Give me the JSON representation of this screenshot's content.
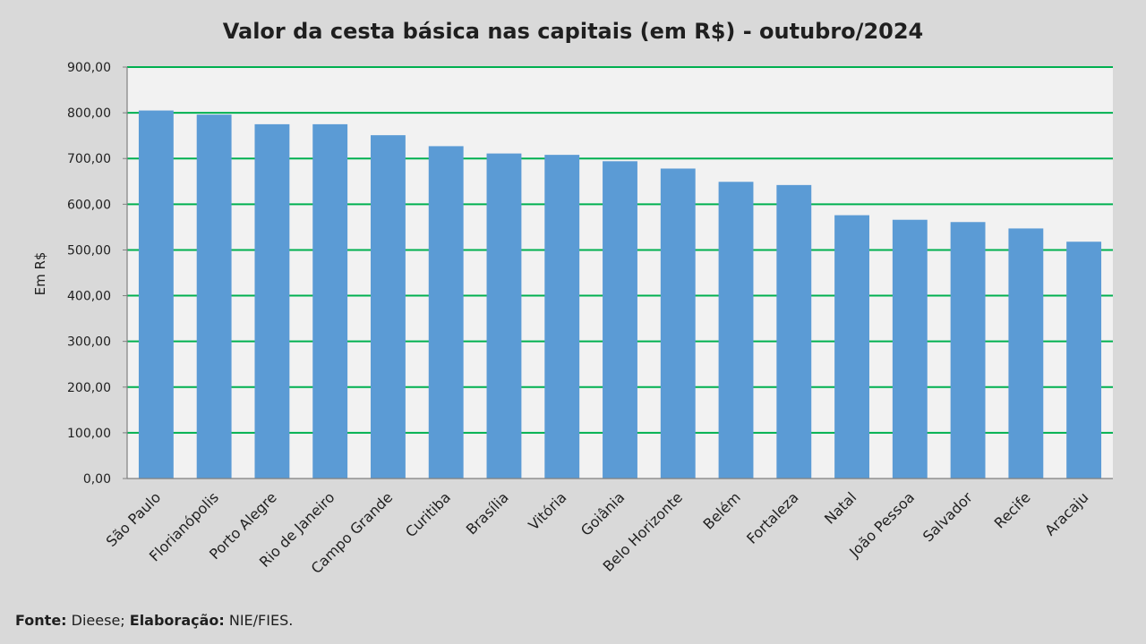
{
  "chart_data": {
    "type": "bar",
    "title": "Valor da cesta básica nas capitais (em R$) - outubro/2024",
    "ylabel": "Em R$",
    "xlabel": "",
    "ylim": [
      0,
      900
    ],
    "yticks": [
      "0,00",
      "100,00",
      "200,00",
      "300,00",
      "400,00",
      "500,00",
      "600,00",
      "700,00",
      "800,00",
      "900,00"
    ],
    "grid": true,
    "categories": [
      "São Paulo",
      "Florianópolis",
      "Porto Alegre",
      "Rio de Janeiro",
      "Campo Grande",
      "Curitiba",
      "Brasília",
      "Vitória",
      "Goiânia",
      "Belo Horizonte",
      "Belém",
      "Fortaleza",
      "Natal",
      "João Pessoa",
      "Salvador",
      "Recife",
      "Aracaju"
    ],
    "values": [
      805,
      796,
      775,
      775,
      751,
      727,
      711,
      708,
      694,
      678,
      649,
      642,
      576,
      566,
      561,
      547,
      518
    ],
    "colors": {
      "bar": "#5b9bd5",
      "grid": "#00b050",
      "plot_bg": "#f2f2f2",
      "background": "#d9d9d9",
      "axis": "#808080"
    }
  },
  "source": {
    "fonte_label": "Fonte:",
    "fonte_value": " Dieese; ",
    "elab_label": "Elaboração:",
    "elab_value": " NIE/FIES."
  }
}
